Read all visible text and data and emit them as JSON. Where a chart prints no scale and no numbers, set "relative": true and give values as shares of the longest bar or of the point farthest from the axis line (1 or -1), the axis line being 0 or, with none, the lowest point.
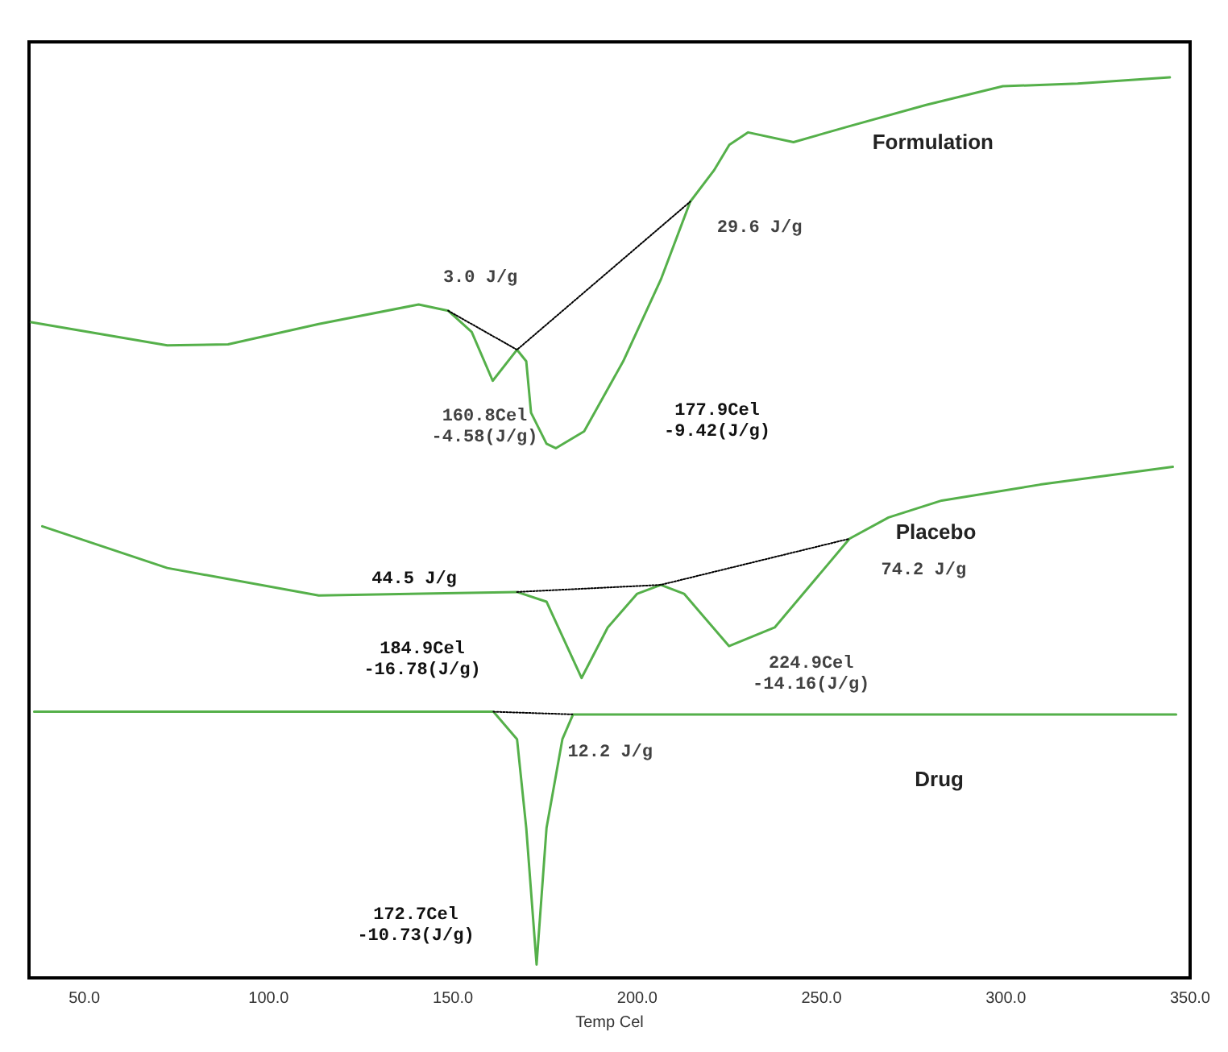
{
  "chart_data": {
    "type": "line",
    "relative": true,
    "xlabel": "Temp Cel",
    "xlim": [
      35,
      350
    ],
    "xticks": [
      {
        "value": 50,
        "label": "50.0"
      },
      {
        "value": 100,
        "label": "100.0"
      },
      {
        "value": 150,
        "label": "150.0"
      },
      {
        "value": 200,
        "label": "200.0"
      },
      {
        "value": 250,
        "label": "250.0"
      },
      {
        "value": 300,
        "label": "300.0"
      },
      {
        "value": 350,
        "label": "350.0"
      }
    ],
    "grid": false,
    "legend": false,
    "marker": "none",
    "line_style": "solid",
    "series": [
      {
        "name": "Formulation",
        "color": "#55b04a",
        "x": [
          35.6,
          72.5,
          89,
          113.6,
          140.7,
          148.7,
          155.1,
          160.8,
          167.4,
          169.9,
          171.2,
          175.4,
          177.9,
          185.6,
          196.2,
          206.4,
          214.4,
          220.8,
          225,
          230.1,
          242.4,
          257.6,
          278.4,
          299.2,
          319.5,
          344.5
        ],
        "values": [
          0.724,
          0.698,
          0.699,
          0.722,
          0.744,
          0.737,
          0.713,
          0.658,
          0.693,
          0.68,
          0.622,
          0.587,
          0.582,
          0.601,
          0.68,
          0.772,
          0.86,
          0.895,
          0.924,
          0.938,
          0.927,
          0.945,
          0.969,
          0.99,
          0.993,
          1
        ]
      },
      {
        "name": "Placebo",
        "color": "#55b04a",
        "x": [
          38.6,
          72.5,
          113.6,
          167.4,
          175.4,
          184.9,
          192,
          200,
          206.4,
          212.7,
          224.9,
          237.3,
          257.6,
          268.2,
          282.6,
          309.3,
          345.3
        ],
        "values": [
          0.494,
          0.447,
          0.416,
          0.42,
          0.409,
          0.323,
          0.38,
          0.418,
          0.428,
          0.418,
          0.359,
          0.38,
          0.48,
          0.504,
          0.523,
          0.541,
          0.561
        ]
      },
      {
        "name": "Drug",
        "color": "#55b04a",
        "x": [
          36.4,
          161,
          167.4,
          169.9,
          172.7,
          175.4,
          179.7,
          182.6,
          346.2
        ],
        "values": [
          0.285,
          0.285,
          0.254,
          0.154,
          0,
          0.154,
          0.254,
          0.282,
          0.282
        ]
      },
      {
        "color": "#000000",
        "line_style": "dotted",
        "x": [
          148.7,
          167.4,
          214.4
        ],
        "values": [
          0.737,
          0.693,
          0.86
        ]
      },
      {
        "color": "#000000",
        "line_style": "dotted",
        "x": [
          167.4,
          206.4,
          257.6
        ],
        "values": [
          0.42,
          0.428,
          0.48
        ]
      },
      {
        "color": "#000000",
        "line_style": "dotted",
        "x": [
          161,
          182.6
        ],
        "values": [
          0.285,
          0.282
        ]
      }
    ],
    "annotations": [
      {
        "text": "3.0 J/g",
        "x": 148.7,
        "y": 0.737
      },
      {
        "text": "29.6 J/g",
        "x": 214.4,
        "y": 0.86
      },
      {
        "text": "160.8Cel\n-4.58(J/g)",
        "x": 160.8,
        "y": 0.658
      },
      "177.9Cel\n-9.42(J/g)",
      "44.5 J/g",
      {
        "text": "74.2 J/g",
        "x": 257.6,
        "y": 0.48
      },
      "184.9Cel\n-16.78(J/g)",
      {
        "text": "224.9Cel\n-14.16(J/g)",
        "x": 224.9,
        "y": 0.359
      },
      {
        "text": "12.2 J/g",
        "x": 182.6,
        "y": 0.282
      },
      "172.7Cel\n-10.73(J/g)"
    ]
  }
}
